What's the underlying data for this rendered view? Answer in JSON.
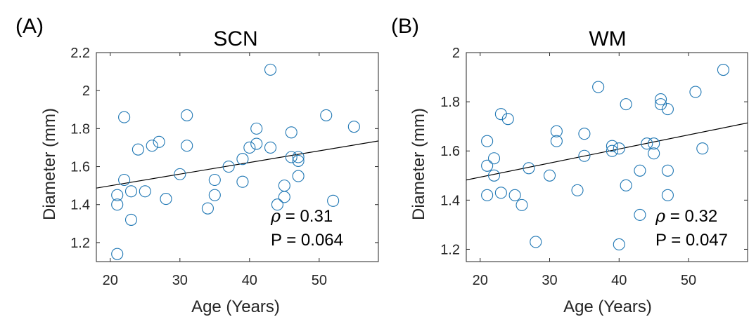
{
  "figure": {
    "panels": [
      {
        "panel_label": "(A)",
        "rho_symbol": "ρ",
        "rho_text": " = 0.31",
        "p_text": "P = 0.064"
      },
      {
        "panel_label": "(B)",
        "rho_symbol": "ρ",
        "rho_text": " = 0.32",
        "p_text": "P = 0.047"
      }
    ]
  },
  "chart_data": [
    {
      "type": "scatter",
      "title": "SCN",
      "xlabel": "Age (Years)",
      "ylabel": "Diameter (mm)",
      "xlim": [
        18,
        58.5
      ],
      "ylim": [
        1.1,
        2.2
      ],
      "xticks": [
        20,
        30,
        40,
        50
      ],
      "yticks": [
        1.2,
        1.4,
        1.6,
        1.8,
        2.0,
        2.2
      ],
      "ytick_labels": [
        "1.2",
        "1.4",
        "1.6",
        "1.8",
        "2",
        "2.2"
      ],
      "marker_color": "#1f77b4",
      "line_color": "#000000",
      "fit_line": {
        "x": [
          18,
          58.5
        ],
        "y": [
          1.487,
          1.735
        ]
      },
      "points": [
        [
          21,
          1.14
        ],
        [
          21,
          1.4
        ],
        [
          21,
          1.45
        ],
        [
          22,
          1.86
        ],
        [
          22,
          1.53
        ],
        [
          23,
          1.47
        ],
        [
          23,
          1.32
        ],
        [
          24,
          1.69
        ],
        [
          25,
          1.47
        ],
        [
          26,
          1.71
        ],
        [
          27,
          1.73
        ],
        [
          28,
          1.43
        ],
        [
          30,
          1.56
        ],
        [
          31,
          1.87
        ],
        [
          31,
          1.71
        ],
        [
          34,
          1.38
        ],
        [
          35,
          1.53
        ],
        [
          35,
          1.45
        ],
        [
          37,
          1.6
        ],
        [
          39,
          1.64
        ],
        [
          39,
          1.52
        ],
        [
          40,
          1.7
        ],
        [
          41,
          1.8
        ],
        [
          41,
          1.72
        ],
        [
          43,
          2.11
        ],
        [
          43,
          1.7
        ],
        [
          44,
          1.4
        ],
        [
          45,
          1.5
        ],
        [
          45,
          1.44
        ],
        [
          46,
          1.78
        ],
        [
          46,
          1.65
        ],
        [
          47,
          1.65
        ],
        [
          47,
          1.63
        ],
        [
          47,
          1.55
        ],
        [
          51,
          1.87
        ],
        [
          52,
          1.42
        ],
        [
          55,
          1.81
        ]
      ]
    },
    {
      "type": "scatter",
      "title": "WM",
      "xlabel": "Age (Years)",
      "ylabel": "Diameter (mm)",
      "xlim": [
        18,
        58.5
      ],
      "ylim": [
        1.15,
        2.0
      ],
      "xticks": [
        20,
        30,
        40,
        50
      ],
      "yticks": [
        1.2,
        1.4,
        1.6,
        1.8,
        2.0
      ],
      "ytick_labels": [
        "1.2",
        "1.4",
        "1.6",
        "1.8",
        "2"
      ],
      "marker_color": "#1f77b4",
      "line_color": "#000000",
      "fit_line": {
        "x": [
          18,
          58.5
        ],
        "y": [
          1.482,
          1.714
        ]
      },
      "points": [
        [
          21,
          1.64
        ],
        [
          21,
          1.54
        ],
        [
          21,
          1.42
        ],
        [
          22,
          1.57
        ],
        [
          22,
          1.5
        ],
        [
          23,
          1.75
        ],
        [
          23,
          1.43
        ],
        [
          24,
          1.73
        ],
        [
          25,
          1.42
        ],
        [
          26,
          1.38
        ],
        [
          27,
          1.53
        ],
        [
          28,
          1.23
        ],
        [
          30,
          1.5
        ],
        [
          31,
          1.68
        ],
        [
          31,
          1.64
        ],
        [
          34,
          1.44
        ],
        [
          35,
          1.67
        ],
        [
          35,
          1.58
        ],
        [
          37,
          1.86
        ],
        [
          39,
          1.62
        ],
        [
          39,
          1.6
        ],
        [
          40,
          1.61
        ],
        [
          40,
          1.22
        ],
        [
          41,
          1.79
        ],
        [
          41,
          1.46
        ],
        [
          43,
          1.34
        ],
        [
          43,
          1.52
        ],
        [
          44,
          1.63
        ],
        [
          45,
          1.63
        ],
        [
          45,
          1.59
        ],
        [
          46,
          1.81
        ],
        [
          46,
          1.79
        ],
        [
          47,
          1.77
        ],
        [
          47,
          1.52
        ],
        [
          47,
          1.42
        ],
        [
          51,
          1.84
        ],
        [
          52,
          1.61
        ],
        [
          55,
          1.93
        ]
      ]
    }
  ]
}
